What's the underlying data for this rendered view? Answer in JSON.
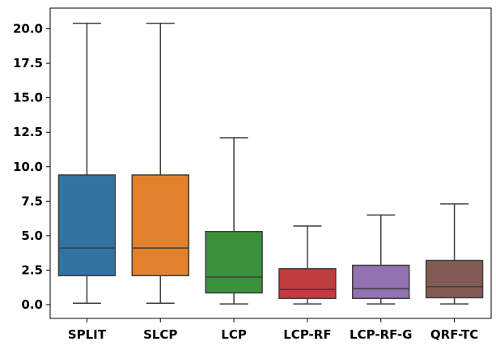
{
  "chart_data": {
    "type": "box",
    "title": "",
    "xlabel": "",
    "ylabel": "",
    "ylim": [
      -1.0,
      21.5
    ],
    "yticks": [
      0.0,
      2.5,
      5.0,
      7.5,
      10.0,
      12.5,
      15.0,
      17.5,
      20.0
    ],
    "ytick_labels": [
      "0.0",
      "2.5",
      "5.0",
      "7.5",
      "10.0",
      "12.5",
      "15.0",
      "17.5",
      "20.0"
    ],
    "grid": false,
    "categories": [
      "SPLIT",
      "SLCP",
      "LCP",
      "LCP-RF",
      "LCP-RF-G",
      "QRF-TC"
    ],
    "series": [
      {
        "category": "SPLIT",
        "whisker_low": 0.1,
        "q1": 2.1,
        "median": 4.1,
        "q3": 9.4,
        "whisker_high": 20.4,
        "color": "#3274a1"
      },
      {
        "category": "SLCP",
        "whisker_low": 0.1,
        "q1": 2.1,
        "median": 4.1,
        "q3": 9.4,
        "whisker_high": 20.4,
        "color": "#e1812c"
      },
      {
        "category": "LCP",
        "whisker_low": 0.05,
        "q1": 0.85,
        "median": 2.0,
        "q3": 5.3,
        "whisker_high": 12.1,
        "color": "#3a923a"
      },
      {
        "category": "LCP-RF",
        "whisker_low": 0.05,
        "q1": 0.45,
        "median": 1.1,
        "q3": 2.6,
        "whisker_high": 5.7,
        "color": "#c03d3e"
      },
      {
        "category": "LCP-RF-G",
        "whisker_low": 0.05,
        "q1": 0.45,
        "median": 1.15,
        "q3": 2.85,
        "whisker_high": 6.5,
        "color": "#9372b2"
      },
      {
        "category": "QRF-TC",
        "whisker_low": 0.05,
        "q1": 0.5,
        "median": 1.3,
        "q3": 3.2,
        "whisker_high": 7.3,
        "color": "#845b53"
      }
    ]
  }
}
